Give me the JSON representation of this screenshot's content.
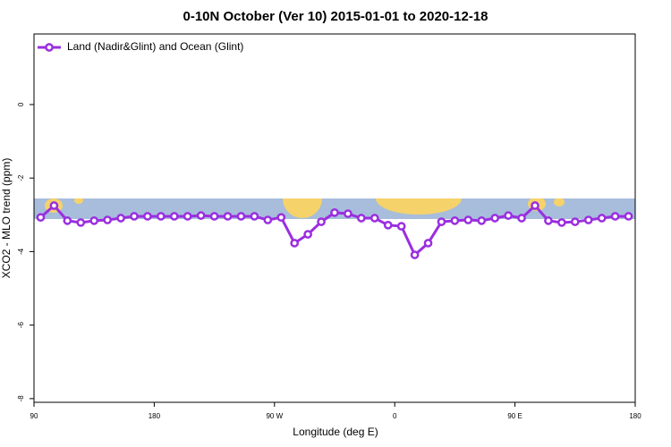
{
  "chart_data": {
    "type": "line",
    "title": "0-10N October (Ver 10)   2015-01-01 to 2020-12-18",
    "x_label": "Longitude (deg E)",
    "y_label": "XCO2 - MLO trend (ppm)",
    "xlim": [
      90,
      540
    ],
    "ylim": [
      -8.1,
      1.92
    ],
    "xticks": [
      90,
      180,
      {
        "value": 270,
        "label": "90 W"
      },
      {
        "value": 360,
        "label": "0"
      },
      {
        "value": 450,
        "label": "90 E"
      },
      {
        "value": 540,
        "label": "180"
      }
    ],
    "xtick_first_label": "90 E",
    "yticks": [
      0,
      -2,
      -4,
      -6,
      -8
    ],
    "legend": "upper left",
    "x": [
      95,
      105,
      115,
      125,
      135,
      145,
      155,
      165,
      175,
      185,
      195,
      205,
      215,
      225,
      235,
      245,
      255,
      265,
      275,
      285,
      295,
      305,
      315,
      325,
      335,
      345,
      355,
      365,
      375,
      385,
      395,
      405,
      415,
      425,
      435,
      445,
      455,
      465,
      475,
      485,
      495,
      505,
      515,
      525,
      535
    ],
    "series": [
      {
        "name": "Land (Nadir&Glint) and Ocean (Glint)",
        "color": "#9a2ee0",
        "values": [
          -3.07,
          -2.75,
          -3.16,
          -3.21,
          -3.16,
          -3.14,
          -3.09,
          -3.04,
          -3.04,
          -3.04,
          -3.04,
          -3.04,
          -3.02,
          -3.04,
          -3.04,
          -3.04,
          -3.04,
          -3.14,
          -3.07,
          -3.77,
          -3.53,
          -3.19,
          -2.94,
          -2.97,
          -3.09,
          -3.09,
          -3.28,
          -3.31,
          -4.09,
          -3.77,
          -3.19,
          -3.16,
          -3.14,
          -3.16,
          -3.09,
          -3.02,
          -3.09,
          -2.75,
          -3.16,
          -3.21,
          -3.19,
          -3.14,
          -3.09,
          -3.04,
          -3.04
        ]
      }
    ]
  }
}
